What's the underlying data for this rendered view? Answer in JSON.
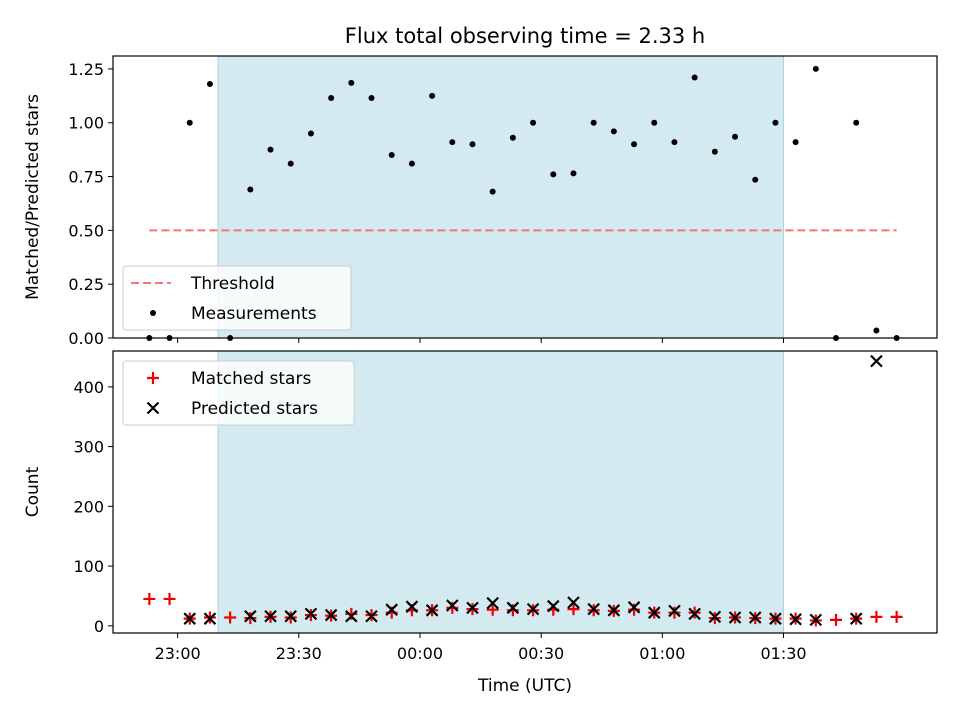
{
  "chart_data": {
    "type": "scatter",
    "title": "Flux total observing time = 2.33 h",
    "xlabel": "Time (UTC)",
    "x_tick_labels": [
      "23:00",
      "23:30",
      "00:00",
      "00:30",
      "01:00",
      "01:30"
    ],
    "x_tick_minutes": [
      60,
      90,
      120,
      150,
      180,
      210
    ],
    "x_range_minutes": [
      44,
      248
    ],
    "shaded_interval_minutes": [
      70,
      210
    ],
    "shade_color": "#d3eaf0",
    "panels": [
      {
        "id": "ratio",
        "ylabel": "Matched/Predicted stars",
        "ylim": [
          0,
          1.31
        ],
        "y_ticks": [
          0,
          0.25,
          0.5,
          0.75,
          1.0,
          1.25
        ],
        "y_tick_labels": [
          "0.00",
          "0.25",
          "0.50",
          "0.75",
          "1.00",
          "1.25"
        ],
        "legend": {
          "placement": "lower-left",
          "entries": [
            {
              "label": "Threshold",
              "marker": "dash",
              "color": "#f87474"
            },
            {
              "label": "Measurements",
              "marker": "dot",
              "color": "#000000"
            }
          ]
        },
        "threshold": {
          "value": 0.5,
          "x_minutes": [
            53,
            238
          ],
          "color": "#f87474"
        },
        "measurements": {
          "x_minutes": [
            53,
            58,
            63,
            68,
            73,
            78,
            83,
            88,
            93,
            98,
            103,
            108,
            113,
            118,
            123,
            128,
            133,
            138,
            143,
            148,
            153,
            158,
            163,
            168,
            173,
            178,
            183,
            188,
            193,
            198,
            203,
            208,
            213,
            218,
            223,
            228,
            233,
            238
          ],
          "y": [
            0,
            0,
            1.0,
            1.18,
            0,
            0.69,
            0.875,
            0.81,
            0.95,
            1.115,
            1.185,
            1.115,
            0.85,
            0.81,
            1.125,
            0.91,
            0.9,
            0.68,
            0.93,
            1.0,
            0.76,
            0.765,
            1.0,
            0.96,
            0.9,
            1.0,
            0.91,
            1.21,
            0.865,
            0.935,
            0.735,
            1.0,
            0.91,
            1.25,
            0,
            1.0,
            0.035,
            0
          ]
        }
      },
      {
        "id": "counts",
        "ylabel": "Count",
        "ylim": [
          -12,
          460
        ],
        "y_ticks": [
          0,
          100,
          200,
          300,
          400
        ],
        "y_tick_labels": [
          "0",
          "100",
          "200",
          "300",
          "400"
        ],
        "legend": {
          "placement": "upper-left",
          "entries": [
            {
              "label": "Matched stars",
              "marker": "plus",
              "color": "#ee0000"
            },
            {
              "label": "Predicted stars",
              "marker": "x",
              "color": "#000000"
            }
          ]
        },
        "series": [
          {
            "name": "Matched stars",
            "marker": "plus",
            "color": "#ee0000",
            "x_minutes": [
              53,
              58,
              63,
              68,
              73,
              78,
              83,
              88,
              93,
              98,
              103,
              108,
              113,
              118,
              123,
              128,
              133,
              138,
              143,
              148,
              153,
              158,
              163,
              168,
              173,
              178,
              183,
              188,
              193,
              198,
              203,
              208,
              213,
              218,
              223,
              228,
              233,
              238
            ],
            "y": [
              45,
              45,
              12,
              14,
              14,
              13,
              15,
              14,
              18,
              17,
              20,
              18,
              22,
              26,
              26,
              30,
              28,
              27,
              26,
              26,
              27,
              28,
              26,
              25,
              27,
              22,
              22,
              22,
              13,
              14,
              13,
              12,
              12,
              9,
              10,
              12,
              15,
              15
            ]
          },
          {
            "name": "Predicted stars",
            "marker": "x",
            "color": "#000000",
            "x_minutes": [
              63,
              68,
              78,
              83,
              88,
              93,
              98,
              103,
              108,
              113,
              118,
              123,
              128,
              133,
              138,
              143,
              148,
              153,
              158,
              163,
              168,
              173,
              178,
              183,
              188,
              193,
              198,
              203,
              208,
              213,
              218,
              228,
              233
            ],
            "y": [
              12,
              12,
              16,
              16,
              16,
              20,
              18,
              16,
              16,
              27,
              32,
              26,
              34,
              30,
              38,
              30,
              28,
              33,
              39,
              28,
              26,
              31,
              22,
              25,
              20,
              15,
              14,
              14,
              12,
              11,
              10,
              12,
              443
            ]
          }
        ]
      }
    ]
  }
}
